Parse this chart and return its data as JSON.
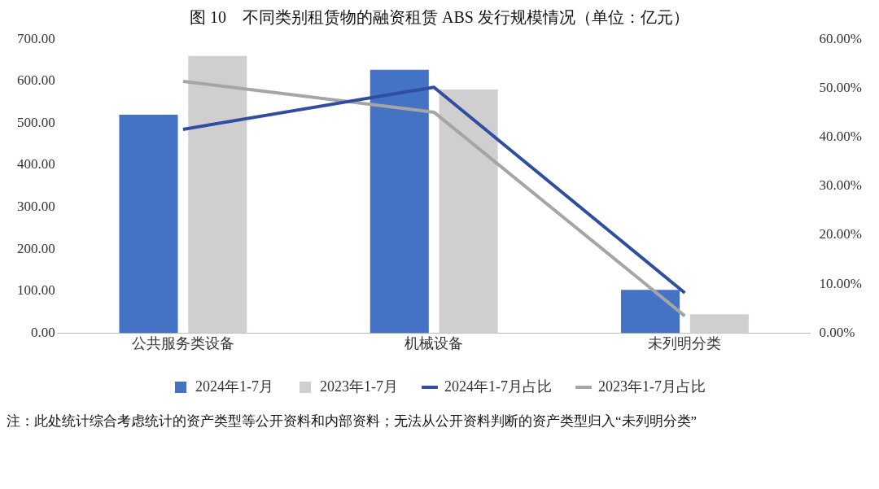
{
  "chart_data": {
    "type": "bar",
    "title": "图 10　不同类别租赁物的融资租赁 ABS 发行规模情况（单位：亿元）",
    "categories": [
      "公共服务类设备",
      "机械设备",
      "未列明分类"
    ],
    "series": [
      {
        "name": "2024年1-7月",
        "color": "#4472c4",
        "values": [
          520,
          627,
          103
        ]
      },
      {
        "name": "2023年1-7月",
        "color": "#d0cece",
        "values": [
          660,
          580,
          45
        ]
      },
      {
        "name": "2024年1-7月占比",
        "type": "line",
        "axis": "y2",
        "color": "#2f4ea0",
        "values": [
          41.6,
          50.2,
          8.2
        ]
      },
      {
        "name": "2023年1-7月占比",
        "type": "line",
        "axis": "y2",
        "color": "#a5a5a5",
        "values": [
          51.4,
          45.1,
          3.5
        ]
      }
    ],
    "ylim": [
      0,
      700
    ],
    "yticks": [
      {
        "value": 0,
        "label": "0.00"
      },
      {
        "value": 100,
        "label": "100.00"
      },
      {
        "value": 200,
        "label": "200.00"
      },
      {
        "value": 300,
        "label": "300.00"
      },
      {
        "value": 400,
        "label": "400.00"
      },
      {
        "value": 500,
        "label": "500.00"
      },
      {
        "value": 600,
        "label": "600.00"
      },
      {
        "value": 700,
        "label": "700.00"
      }
    ],
    "y2lim": [
      0,
      60
    ],
    "y2ticks": [
      {
        "value": 0,
        "label": "0.00%"
      },
      {
        "value": 10,
        "label": "10.00%"
      },
      {
        "value": 20,
        "label": "20.00%"
      },
      {
        "value": 30,
        "label": "30.00%"
      },
      {
        "value": 40,
        "label": "40.00%"
      },
      {
        "value": 50,
        "label": "50.00%"
      },
      {
        "value": 60,
        "label": "60.00%"
      }
    ],
    "grid": false,
    "legend": "bottom",
    "marker": "none",
    "line_style": "solid",
    "annotations": [
      "注：此处统计综合考虑统计的资产类型等公开资料和内部资料；无法从公开资料判断的资产类型归入“未列明分类”"
    ]
  }
}
